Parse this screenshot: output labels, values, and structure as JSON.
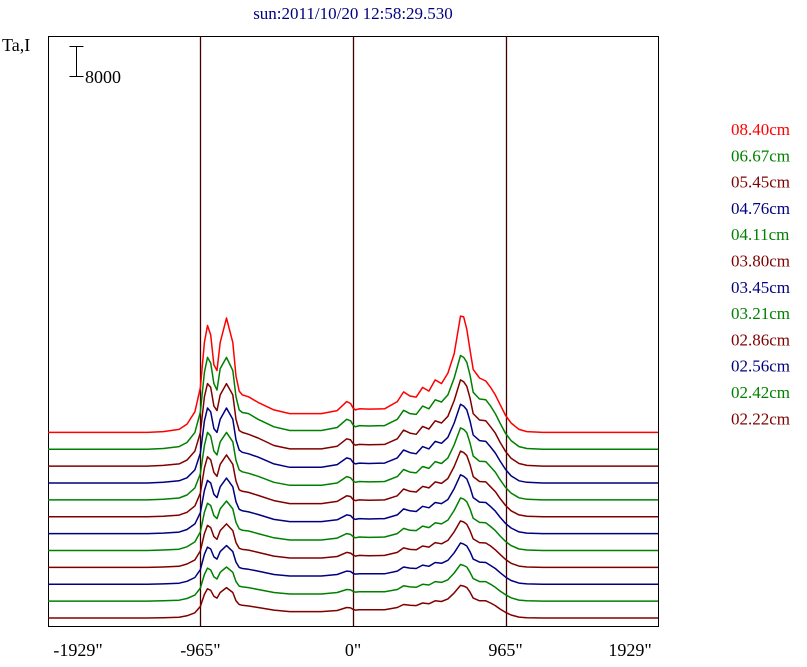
{
  "header": {
    "title": "sun:2011/10/20 12:58:29.530",
    "y_axis_label": "Ta,I",
    "scale_bar_label": "8000"
  },
  "chart_data": {
    "type": "line",
    "title": "sun:2011/10/20 12:58:29.530",
    "ylabel": "Ta,I",
    "xlabel": "",
    "xlim": [
      -1929,
      1929
    ],
    "x_ticks": [
      {
        "value": -1929,
        "label": "-1929\""
      },
      {
        "value": -965,
        "label": "-965\""
      },
      {
        "value": 0,
        "label": "0\""
      },
      {
        "value": 965,
        "label": "965\""
      },
      {
        "value": 1929,
        "label": "1929\""
      }
    ],
    "vertical_lines": [
      -965,
      0,
      965
    ],
    "scale_bar": {
      "label": "8000",
      "value": 8000
    },
    "grid": false,
    "legend_position": "right",
    "colors": {
      "red": "#ff0000",
      "green": "#008000",
      "darkred": "#800000",
      "blue": "#000080"
    },
    "profile_x": [
      -1929,
      -1300,
      -1200,
      -1100,
      -1050,
      -1000,
      -965,
      -940,
      -920,
      -900,
      -880,
      -860,
      -840,
      -800,
      -760,
      -740,
      -720,
      -700,
      -660,
      -600,
      -500,
      -400,
      -300,
      -200,
      -100,
      -40,
      -15,
      0,
      15,
      40,
      100,
      200,
      280,
      320,
      360,
      400,
      440,
      480,
      520,
      560,
      600,
      640,
      680,
      700,
      720,
      740,
      760,
      800,
      840,
      870,
      900,
      930,
      965,
      1000,
      1050,
      1100,
      1200,
      1300,
      1929
    ],
    "series": [
      {
        "name": "08.40cm",
        "color": "#ff0000",
        "values": [
          0,
          0,
          200,
          800,
          2200,
          5500,
          12000,
          24000,
          28500,
          26000,
          18000,
          16500,
          24000,
          30500,
          24000,
          15000,
          11000,
          10000,
          9500,
          8000,
          6000,
          5000,
          5000,
          5000,
          5800,
          8200,
          7700,
          6500,
          6000,
          6300,
          6200,
          6300,
          8200,
          10800,
          9700,
          9400,
          12000,
          11000,
          14000,
          13000,
          15800,
          21000,
          31000,
          30800,
          27500,
          22000,
          16800,
          14500,
          13700,
          12000,
          10000,
          7500,
          4500,
          2500,
          800,
          200,
          0,
          0,
          0
        ]
      },
      {
        "name": "06.67cm",
        "color": "#008000",
        "values": [
          0,
          0,
          200,
          700,
          1800,
          4500,
          10000,
          20500,
          24500,
          23000,
          17500,
          15800,
          21500,
          24500,
          21000,
          14000,
          10500,
          9800,
          9500,
          8000,
          6000,
          5000,
          5000,
          5000,
          5800,
          8000,
          7600,
          6500,
          6000,
          6300,
          6200,
          6300,
          8000,
          10400,
          9500,
          9300,
          11500,
          10800,
          13200,
          12600,
          14500,
          19000,
          25000,
          24500,
          23200,
          19800,
          15200,
          13400,
          13200,
          11500,
          9500,
          7000,
          4200,
          2300,
          700,
          200,
          0,
          0,
          0
        ]
      },
      {
        "name": "05.45cm",
        "color": "#800000",
        "values": [
          0,
          0,
          200,
          600,
          1600,
          4000,
          9000,
          18500,
          22000,
          21000,
          16000,
          14800,
          19000,
          22000,
          19000,
          12500,
          9500,
          9000,
          8500,
          7500,
          5500,
          4600,
          4600,
          4600,
          5300,
          7300,
          7000,
          6000,
          5600,
          5800,
          5700,
          5800,
          7300,
          9600,
          8800,
          8500,
          10600,
          9900,
          12100,
          11500,
          13300,
          17500,
          23000,
          22500,
          21300,
          18200,
          14000,
          12300,
          12100,
          10500,
          8800,
          6400,
          3900,
          2100,
          700,
          200,
          0,
          0,
          0
        ]
      },
      {
        "name": "04.76cm",
        "color": "#000080",
        "values": [
          0,
          0,
          200,
          600,
          1400,
          3500,
          8000,
          16500,
          20000,
          19000,
          14500,
          13500,
          17000,
          20000,
          17000,
          11500,
          8800,
          8200,
          7800,
          6900,
          5100,
          4200,
          4200,
          4200,
          4900,
          6700,
          6400,
          5500,
          5100,
          5300,
          5200,
          5300,
          6700,
          8800,
          8100,
          7800,
          9700,
          9100,
          11100,
          10600,
          12200,
          16000,
          21000,
          20500,
          19500,
          16600,
          12800,
          11300,
          11100,
          9600,
          8000,
          5900,
          3600,
          1900,
          600,
          200,
          0,
          0,
          0
        ]
      },
      {
        "name": "04.11cm",
        "color": "#008000",
        "values": [
          0,
          0,
          150,
          500,
          1300,
          3200,
          7000,
          14500,
          18000,
          17000,
          13000,
          12000,
          15500,
          18000,
          15500,
          10500,
          8000,
          7500,
          7100,
          6300,
          4700,
          3900,
          3900,
          3900,
          4500,
          6200,
          5900,
          5100,
          4700,
          4900,
          4800,
          4900,
          6200,
          8100,
          7400,
          7200,
          8900,
          8400,
          10200,
          9700,
          11200,
          14700,
          19200,
          18800,
          17900,
          15200,
          11700,
          10300,
          10200,
          8800,
          7400,
          5400,
          3300,
          1800,
          550,
          150,
          0,
          0,
          0
        ]
      },
      {
        "name": "03.80cm",
        "color": "#800000",
        "values": [
          0,
          0,
          150,
          450,
          1200,
          2900,
          6300,
          13000,
          16000,
          15200,
          11800,
          10800,
          14000,
          16500,
          14000,
          9500,
          7200,
          6800,
          6500,
          5700,
          4300,
          3500,
          3500,
          3500,
          4100,
          5600,
          5400,
          4600,
          4300,
          4500,
          4400,
          4500,
          5600,
          7400,
          6800,
          6600,
          8100,
          7700,
          9300,
          8900,
          10200,
          13400,
          17500,
          17100,
          16300,
          13900,
          10700,
          9400,
          9300,
          8000,
          6700,
          4900,
          3000,
          1600,
          500,
          150,
          0,
          0,
          0
        ]
      },
      {
        "name": "03.45cm",
        "color": "#000080",
        "values": [
          0,
          0,
          150,
          400,
          1100,
          2600,
          5600,
          11500,
          14200,
          13500,
          10500,
          9600,
          12500,
          14800,
          12500,
          8500,
          6500,
          6100,
          5800,
          5100,
          3800,
          3200,
          3200,
          3200,
          3700,
          5000,
          4800,
          4100,
          3800,
          4000,
          3900,
          4000,
          5000,
          6600,
          6100,
          5900,
          7300,
          6900,
          8300,
          8000,
          9100,
          12000,
          15700,
          15300,
          14600,
          12400,
          9600,
          8400,
          8300,
          7200,
          6000,
          4400,
          2700,
          1500,
          450,
          150,
          0,
          0,
          0
        ]
      },
      {
        "name": "03.21cm",
        "color": "#008000",
        "values": [
          0,
          0,
          120,
          350,
          1000,
          2300,
          5000,
          10200,
          12600,
          12000,
          9300,
          8500,
          11100,
          13200,
          11100,
          7500,
          5800,
          5400,
          5200,
          4500,
          3400,
          2800,
          2800,
          2800,
          3300,
          4500,
          4300,
          3700,
          3400,
          3600,
          3500,
          3600,
          4500,
          5900,
          5400,
          5300,
          6500,
          6100,
          7400,
          7100,
          8100,
          10700,
          14000,
          13700,
          13000,
          11100,
          8600,
          7500,
          7400,
          6400,
          5300,
          3900,
          2400,
          1300,
          400,
          120,
          0,
          0,
          0
        ]
      },
      {
        "name": "02.86cm",
        "color": "#800000",
        "values": [
          0,
          0,
          100,
          300,
          900,
          2000,
          4400,
          9000,
          11200,
          10600,
          8200,
          7500,
          9800,
          11600,
          9800,
          6600,
          5100,
          4800,
          4600,
          4000,
          3000,
          2500,
          2500,
          2500,
          2900,
          4000,
          3800,
          3300,
          3000,
          3200,
          3100,
          3200,
          4000,
          5200,
          4800,
          4700,
          5700,
          5400,
          6600,
          6300,
          7200,
          9500,
          12400,
          12100,
          11500,
          9800,
          7600,
          6600,
          6500,
          5700,
          4700,
          3500,
          2100,
          1100,
          350,
          100,
          0,
          0,
          0
        ]
      },
      {
        "name": "02.56cm",
        "color": "#000080",
        "values": [
          0,
          0,
          100,
          280,
          800,
          1800,
          3900,
          8000,
          9900,
          9400,
          7300,
          6700,
          8700,
          10300,
          8700,
          5900,
          4500,
          4200,
          4000,
          3500,
          2600,
          2200,
          2200,
          2200,
          2600,
          3500,
          3400,
          2900,
          2700,
          2800,
          2800,
          2800,
          3500,
          4600,
          4300,
          4200,
          5100,
          4800,
          5800,
          5600,
          6400,
          8400,
          11000,
          10700,
          10200,
          8700,
          6700,
          5900,
          5800,
          5000,
          4200,
          3100,
          1900,
          1000,
          300,
          100,
          0,
          0,
          0
        ]
      },
      {
        "name": "02.42cm",
        "color": "#008000",
        "values": [
          0,
          0,
          90,
          250,
          700,
          1600,
          3500,
          7100,
          8800,
          8300,
          6500,
          5900,
          7700,
          9100,
          7700,
          5200,
          4000,
          3800,
          3600,
          3100,
          2300,
          1900,
          1900,
          1900,
          2300,
          3100,
          3000,
          2600,
          2400,
          2500,
          2500,
          2500,
          3100,
          4100,
          3800,
          3700,
          4500,
          4300,
          5200,
          5000,
          5700,
          7500,
          9800,
          9500,
          9100,
          7700,
          6000,
          5200,
          5200,
          4500,
          3700,
          2700,
          1700,
          900,
          270,
          90,
          0,
          0,
          0
        ]
      },
      {
        "name": "02.22cm",
        "color": "#800000",
        "values": [
          0,
          0,
          80,
          220,
          600,
          1400,
          3100,
          6300,
          7800,
          7400,
          5800,
          5300,
          6800,
          8100,
          6800,
          4600,
          3600,
          3400,
          3200,
          2800,
          2100,
          1700,
          1700,
          1700,
          2000,
          2800,
          2700,
          2300,
          2100,
          2200,
          2200,
          2200,
          2800,
          3600,
          3400,
          3300,
          4000,
          3800,
          4600,
          4400,
          5100,
          6700,
          8700,
          8500,
          8100,
          6900,
          5300,
          4600,
          4600,
          4000,
          3300,
          2400,
          1500,
          800,
          240,
          80,
          0,
          0,
          0
        ]
      }
    ],
    "stack_order_bottom_to_top": [
      "02.22cm",
      "02.42cm",
      "02.56cm",
      "02.86cm",
      "03.21cm",
      "03.45cm",
      "03.80cm",
      "04.11cm",
      "04.76cm",
      "05.45cm",
      "06.67cm",
      "08.40cm"
    ],
    "stack_offset": 4500
  }
}
